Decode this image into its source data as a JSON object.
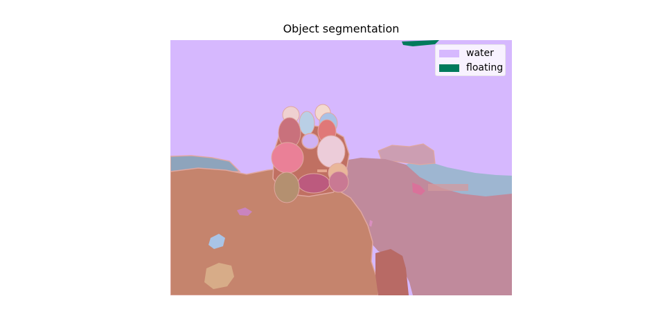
{
  "figure": {
    "title": "Object segmentation"
  },
  "legend": {
    "items": [
      {
        "label": "water",
        "color": "#d6b8fe"
      },
      {
        "label": "floating",
        "color": "#007a5c"
      }
    ]
  },
  "colors": {
    "water": "#d6b8fe",
    "floating": "#007a5c",
    "ground_left": "#c5846d",
    "ground_right": "#c08a9c",
    "far_shore": "#97aebf",
    "outline": "#e0a7a0"
  }
}
